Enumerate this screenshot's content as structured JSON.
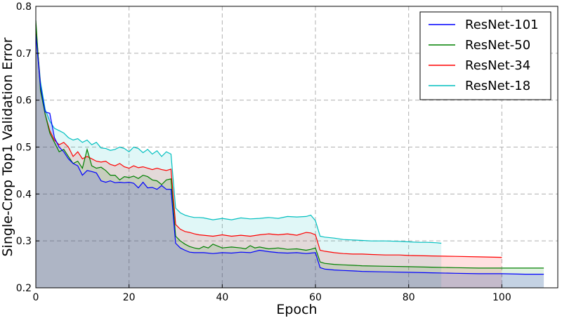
{
  "chart_data": {
    "type": "line",
    "title": "",
    "xlabel": "Epoch",
    "ylabel": "Single-Crop Top1 Validation Error",
    "xlim": [
      0,
      112
    ],
    "ylim": [
      0.2,
      0.8
    ],
    "x_ticks": [
      0,
      20,
      40,
      60,
      80,
      100
    ],
    "y_ticks": [
      0.2,
      0.3,
      0.4,
      0.5,
      0.6,
      0.7,
      0.8
    ],
    "grid": true,
    "legend_position": "top-right",
    "series": [
      {
        "name": "ResNet-18",
        "color": "#00bfbf",
        "fill": true,
        "x": [
          0,
          1,
          2,
          3,
          4,
          5,
          6,
          7,
          8,
          9,
          10,
          11,
          12,
          13,
          14,
          15,
          16,
          17,
          18,
          19,
          20,
          21,
          22,
          23,
          24,
          25,
          26,
          27,
          28,
          29,
          30,
          31,
          32,
          33,
          34,
          35,
          36,
          38,
          40,
          42,
          44,
          46,
          48,
          50,
          52,
          54,
          56,
          58,
          59,
          60,
          61,
          62,
          64,
          66,
          68,
          70,
          72,
          75,
          78,
          80,
          82,
          84,
          86,
          87
        ],
        "values": [
          0.75,
          0.64,
          0.58,
          0.555,
          0.54,
          0.535,
          0.53,
          0.52,
          0.515,
          0.518,
          0.51,
          0.515,
          0.505,
          0.51,
          0.498,
          0.497,
          0.493,
          0.495,
          0.5,
          0.497,
          0.49,
          0.5,
          0.497,
          0.488,
          0.495,
          0.485,
          0.492,
          0.48,
          0.49,
          0.485,
          0.37,
          0.36,
          0.355,
          0.352,
          0.35,
          0.35,
          0.349,
          0.345,
          0.348,
          0.345,
          0.349,
          0.347,
          0.348,
          0.35,
          0.348,
          0.352,
          0.351,
          0.352,
          0.355,
          0.343,
          0.31,
          0.308,
          0.306,
          0.303,
          0.302,
          0.301,
          0.3,
          0.3,
          0.299,
          0.298,
          0.297,
          0.297,
          0.296,
          0.295
        ]
      },
      {
        "name": "ResNet-34",
        "color": "#ff0000",
        "fill": true,
        "x": [
          0,
          1,
          2,
          3,
          4,
          5,
          6,
          7,
          8,
          9,
          10,
          11,
          12,
          13,
          14,
          15,
          16,
          17,
          18,
          19,
          20,
          21,
          22,
          23,
          24,
          25,
          26,
          27,
          28,
          29,
          30,
          31,
          32,
          33,
          34,
          35,
          36,
          38,
          40,
          42,
          44,
          46,
          48,
          50,
          52,
          54,
          56,
          58,
          59,
          60,
          61,
          62,
          64,
          66,
          68,
          70,
          72,
          75,
          78,
          80,
          85,
          90,
          95,
          100
        ],
        "values": [
          0.76,
          0.63,
          0.57,
          0.535,
          0.515,
          0.505,
          0.51,
          0.5,
          0.48,
          0.49,
          0.475,
          0.48,
          0.475,
          0.47,
          0.468,
          0.47,
          0.463,
          0.46,
          0.465,
          0.458,
          0.455,
          0.46,
          0.456,
          0.458,
          0.455,
          0.452,
          0.455,
          0.452,
          0.45,
          0.453,
          0.335,
          0.325,
          0.32,
          0.318,
          0.315,
          0.313,
          0.312,
          0.31,
          0.313,
          0.31,
          0.312,
          0.31,
          0.313,
          0.315,
          0.313,
          0.315,
          0.312,
          0.318,
          0.317,
          0.313,
          0.28,
          0.278,
          0.275,
          0.273,
          0.272,
          0.272,
          0.271,
          0.27,
          0.27,
          0.269,
          0.268,
          0.267,
          0.266,
          0.265
        ]
      },
      {
        "name": "ResNet-50",
        "color": "#008000",
        "fill": true,
        "x": [
          0,
          1,
          2,
          3,
          4,
          5,
          6,
          7,
          8,
          9,
          10,
          11,
          12,
          13,
          14,
          15,
          16,
          17,
          18,
          19,
          20,
          21,
          22,
          23,
          24,
          25,
          26,
          27,
          28,
          29,
          30,
          31,
          32,
          33,
          34,
          35,
          36,
          37,
          38,
          40,
          42,
          44,
          45,
          46,
          47,
          48,
          50,
          52,
          54,
          56,
          58,
          59,
          60,
          61,
          62,
          64,
          66,
          68,
          70,
          75,
          80,
          85,
          90,
          95,
          100,
          105,
          109
        ],
        "values": [
          0.77,
          0.62,
          0.57,
          0.53,
          0.51,
          0.49,
          0.495,
          0.48,
          0.465,
          0.47,
          0.455,
          0.495,
          0.46,
          0.455,
          0.457,
          0.45,
          0.44,
          0.44,
          0.43,
          0.437,
          0.435,
          0.438,
          0.433,
          0.44,
          0.437,
          0.43,
          0.428,
          0.42,
          0.43,
          0.432,
          0.31,
          0.3,
          0.293,
          0.288,
          0.285,
          0.283,
          0.288,
          0.285,
          0.293,
          0.285,
          0.287,
          0.285,
          0.283,
          0.29,
          0.285,
          0.287,
          0.283,
          0.285,
          0.282,
          0.283,
          0.28,
          0.282,
          0.285,
          0.255,
          0.252,
          0.25,
          0.249,
          0.248,
          0.247,
          0.246,
          0.245,
          0.244,
          0.243,
          0.242,
          0.242,
          0.242,
          0.242
        ]
      },
      {
        "name": "ResNet-101",
        "color": "#0000ff",
        "fill": true,
        "x": [
          0,
          1,
          2,
          3,
          4,
          5,
          6,
          7,
          8,
          9,
          10,
          11,
          12,
          13,
          14,
          15,
          16,
          17,
          18,
          19,
          20,
          21,
          22,
          23,
          24,
          25,
          26,
          27,
          28,
          29,
          30,
          31,
          32,
          33,
          34,
          35,
          36,
          38,
          40,
          42,
          44,
          46,
          48,
          50,
          52,
          54,
          56,
          58,
          59,
          60,
          61,
          62,
          64,
          66,
          68,
          70,
          75,
          80,
          85,
          90,
          95,
          100,
          105,
          109
        ],
        "values": [
          0.74,
          0.63,
          0.575,
          0.572,
          0.52,
          0.5,
          0.49,
          0.475,
          0.465,
          0.46,
          0.44,
          0.45,
          0.448,
          0.445,
          0.428,
          0.425,
          0.428,
          0.424,
          0.425,
          0.424,
          0.425,
          0.423,
          0.413,
          0.425,
          0.413,
          0.414,
          0.41,
          0.418,
          0.41,
          0.41,
          0.295,
          0.285,
          0.28,
          0.276,
          0.275,
          0.275,
          0.275,
          0.273,
          0.275,
          0.274,
          0.276,
          0.275,
          0.28,
          0.277,
          0.275,
          0.274,
          0.275,
          0.273,
          0.274,
          0.275,
          0.243,
          0.24,
          0.238,
          0.237,
          0.236,
          0.235,
          0.234,
          0.233,
          0.232,
          0.231,
          0.23,
          0.23,
          0.229,
          0.229
        ]
      }
    ],
    "legend_order": [
      "ResNet-101",
      "ResNet-50",
      "ResNet-34",
      "ResNet-18"
    ]
  }
}
